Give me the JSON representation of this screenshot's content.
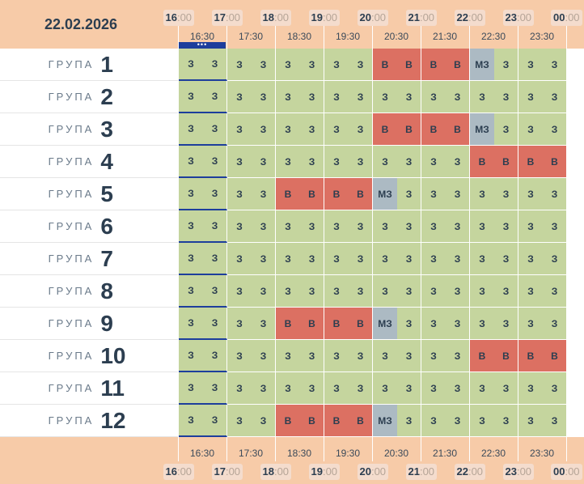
{
  "date": "22.02.2026",
  "hour_labels": [
    {
      "h": "16",
      "m": ":00"
    },
    {
      "h": "17",
      "m": ":00"
    },
    {
      "h": "18",
      "m": ":00"
    },
    {
      "h": "19",
      "m": ":00"
    },
    {
      "h": "20",
      "m": ":00"
    },
    {
      "h": "21",
      "m": ":00"
    },
    {
      "h": "22",
      "m": ":00"
    },
    {
      "h": "23",
      "m": ":00"
    },
    {
      "h": "00",
      "m": ":00"
    }
  ],
  "half_labels": [
    "16:30",
    "17:30",
    "18:30",
    "19:30",
    "20:30",
    "21:30",
    "22:30",
    "23:30"
  ],
  "now_indicator": "•••",
  "group_word": "ГРУПА",
  "status_text": {
    "z": "З",
    "v": "В",
    "m": "МЗ"
  },
  "colors": {
    "z": "#c5d59e",
    "v": "#dc7062",
    "m": "#acbac3",
    "header": "#f7cba8",
    "now": "#1d3e9c"
  },
  "groups": [
    {
      "num": "1",
      "cells": "zzzzzzzzvvvvmzzz"
    },
    {
      "num": "2",
      "cells": "zzzzzzzzzzzzzzzz"
    },
    {
      "num": "3",
      "cells": "zzzzzzzzvvvvmzzz"
    },
    {
      "num": "4",
      "cells": "zzzzzzzzzzzzvvvv"
    },
    {
      "num": "5",
      "cells": "zzzzvvvvmzzzzzzz"
    },
    {
      "num": "6",
      "cells": "zzzzzzzzzzzzzzzz"
    },
    {
      "num": "7",
      "cells": "zzzzzzzzzzzzzzzz"
    },
    {
      "num": "8",
      "cells": "zzzzzzzzzzzzzzzz"
    },
    {
      "num": "9",
      "cells": "zzzzvvvvmzzzzzzz"
    },
    {
      "num": "10",
      "cells": "zzzzzzzzzzzzvvvv"
    },
    {
      "num": "11",
      "cells": "zzzzzzzzzzzzzzzz"
    },
    {
      "num": "12",
      "cells": "zzzzvvvvmzzzzzzz"
    }
  ]
}
